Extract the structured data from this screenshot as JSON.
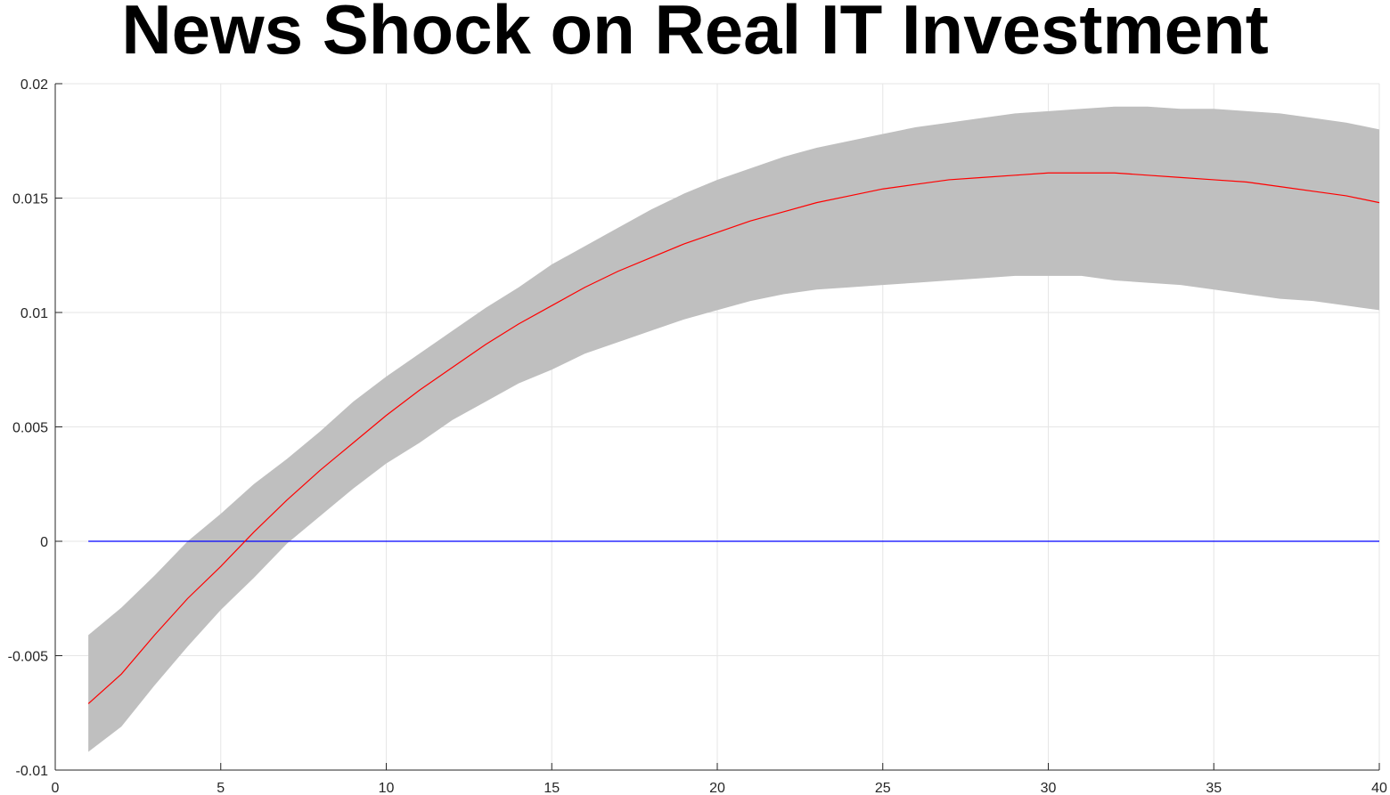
{
  "chart_data": {
    "type": "area",
    "title": "News Shock on Real IT Investment",
    "xlabel": "",
    "ylabel": "",
    "xlim": [
      0,
      40
    ],
    "ylim": [
      -0.01,
      0.02
    ],
    "grid": true,
    "x_ticks": [
      "0",
      "5",
      "10",
      "15",
      "20",
      "25",
      "30",
      "35",
      "40"
    ],
    "y_ticks": [
      "-0.01",
      "-0.005",
      "0",
      "0.005",
      "0.01",
      "0.015",
      "0.02"
    ],
    "x": [
      1,
      2,
      3,
      4,
      5,
      6,
      7,
      8,
      9,
      10,
      11,
      12,
      13,
      14,
      15,
      16,
      17,
      18,
      19,
      20,
      21,
      22,
      23,
      24,
      25,
      26,
      27,
      28,
      29,
      30,
      31,
      32,
      33,
      34,
      35,
      36,
      37,
      38,
      39,
      40
    ],
    "series": [
      {
        "role": "upper_band",
        "values": [
          -0.0041,
          -0.0029,
          -0.0015,
          0.0,
          0.0012,
          0.0025,
          0.0036,
          0.0048,
          0.0061,
          0.0072,
          0.0082,
          0.0092,
          0.0102,
          0.0111,
          0.0121,
          0.0129,
          0.0137,
          0.0145,
          0.0152,
          0.0158,
          0.0163,
          0.0168,
          0.0172,
          0.0175,
          0.0178,
          0.0181,
          0.0183,
          0.0185,
          0.0187,
          0.0188,
          0.0189,
          0.019,
          0.019,
          0.0189,
          0.0189,
          0.0188,
          0.0187,
          0.0185,
          0.0183,
          0.018
        ]
      },
      {
        "role": "lower_band",
        "values": [
          -0.0092,
          -0.0081,
          -0.0063,
          -0.0046,
          -0.003,
          -0.0016,
          -0.0001,
          0.0011,
          0.0023,
          0.0034,
          0.0043,
          0.0053,
          0.0061,
          0.0069,
          0.0075,
          0.0082,
          0.0087,
          0.0092,
          0.0097,
          0.0101,
          0.0105,
          0.0108,
          0.011,
          0.0111,
          0.0112,
          0.0113,
          0.0114,
          0.0115,
          0.0116,
          0.0116,
          0.0116,
          0.0114,
          0.0113,
          0.0112,
          0.011,
          0.0108,
          0.0106,
          0.0105,
          0.0103,
          0.0101
        ]
      },
      {
        "role": "median",
        "color": "#ff0000",
        "values": [
          -0.0071,
          -0.0058,
          -0.0041,
          -0.0025,
          -0.0011,
          0.0004,
          0.0018,
          0.0031,
          0.0043,
          0.0055,
          0.0066,
          0.0076,
          0.0086,
          0.0095,
          0.0103,
          0.0111,
          0.0118,
          0.0124,
          0.013,
          0.0135,
          0.014,
          0.0144,
          0.0148,
          0.0151,
          0.0154,
          0.0156,
          0.0158,
          0.0159,
          0.016,
          0.0161,
          0.0161,
          0.0161,
          0.016,
          0.0159,
          0.0158,
          0.0157,
          0.0155,
          0.0153,
          0.0151,
          0.0148
        ]
      },
      {
        "role": "zero_line",
        "color": "#0000ff",
        "values": [
          0,
          0,
          0,
          0,
          0,
          0,
          0,
          0,
          0,
          0,
          0,
          0,
          0,
          0,
          0,
          0,
          0,
          0,
          0,
          0,
          0,
          0,
          0,
          0,
          0,
          0,
          0,
          0,
          0,
          0,
          0,
          0,
          0,
          0,
          0,
          0,
          0,
          0,
          0,
          0
        ]
      }
    ],
    "band_color": "#bfbfbf"
  }
}
